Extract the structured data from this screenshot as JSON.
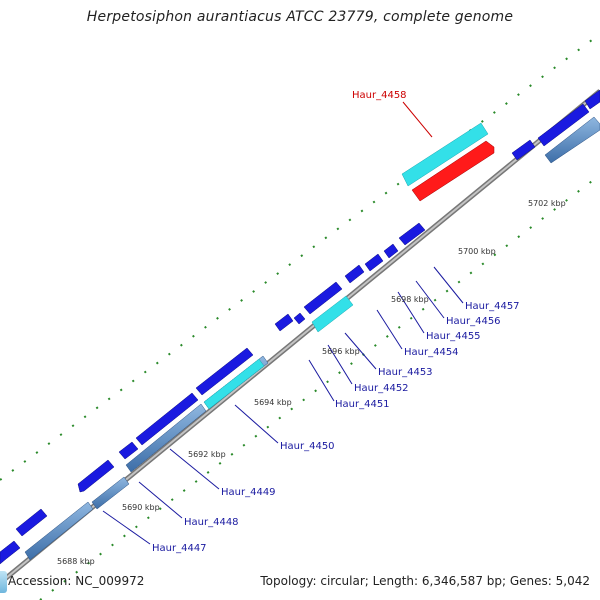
{
  "title": "Herpetosiphon aurantiacus ATCC 23779, complete genome",
  "footer": {
    "accession": "Accession: NC_009972",
    "topology": "Topology: circular; Length: 6,346,587 bp; Genes: 5,042"
  },
  "colors": {
    "backbone": "#9a9a9a",
    "gene_forward": "#1a1ae0",
    "gene_reverse_steel": "#4a7fc0",
    "gene_cyan": "#33e0e8",
    "gene_highlight": "#ff1a1a",
    "label_normal": "#1a1aa0",
    "label_highlight": "#cc0000",
    "ticks": "#2a8a2a"
  },
  "kbp_labels": [
    "5688 kbp",
    "5690 kbp",
    "5692 kbp",
    "5694 kbp",
    "5696 kbp",
    "5698 kbp",
    "5700 kbp",
    "5702 kbp"
  ],
  "gene_labels": [
    {
      "id": "4447",
      "text": "Haur_4447"
    },
    {
      "id": "4448",
      "text": "Haur_4448"
    },
    {
      "id": "4449",
      "text": "Haur_4449"
    },
    {
      "id": "4450",
      "text": "Haur_4450"
    },
    {
      "id": "4451",
      "text": "Haur_4451"
    },
    {
      "id": "4452",
      "text": "Haur_4452"
    },
    {
      "id": "4453",
      "text": "Haur_4453"
    },
    {
      "id": "4454",
      "text": "Haur_4454"
    },
    {
      "id": "4455",
      "text": "Haur_4455"
    },
    {
      "id": "4456",
      "text": "Haur_4456"
    },
    {
      "id": "4457",
      "text": "Haur_4457"
    },
    {
      "id": "4458",
      "text": "Haur_4458",
      "highlight": true
    }
  ]
}
